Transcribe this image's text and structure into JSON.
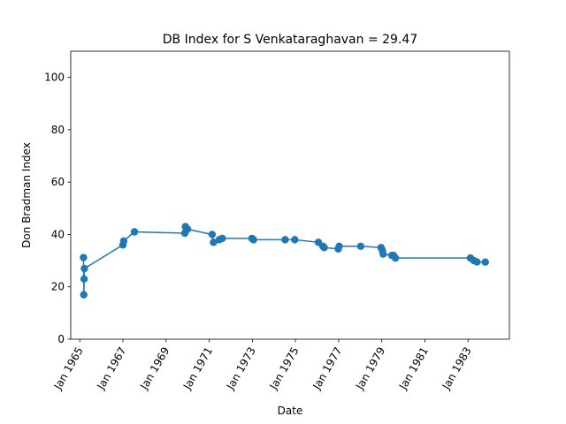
{
  "chart_data": {
    "type": "line",
    "title": "DB Index for S Venkataraghavan = 29.47",
    "xlabel": "Date",
    "ylabel": "Don Bradman Index",
    "ylim": [
      0,
      110
    ],
    "xlim": [
      "1964-08-01",
      "1984-12-01"
    ],
    "y_ticks": [
      0,
      20,
      40,
      60,
      80,
      100
    ],
    "x_ticks": [
      {
        "date": "1965-01-01",
        "label": "Jan 1965"
      },
      {
        "date": "1967-01-01",
        "label": "Jan 1967"
      },
      {
        "date": "1969-01-01",
        "label": "Jan 1969"
      },
      {
        "date": "1971-01-01",
        "label": "Jan 1971"
      },
      {
        "date": "1973-01-01",
        "label": "Jan 1973"
      },
      {
        "date": "1975-01-01",
        "label": "Jan 1975"
      },
      {
        "date": "1977-01-01",
        "label": "Jan 1977"
      },
      {
        "date": "1979-01-01",
        "label": "Jan 1979"
      },
      {
        "date": "1981-01-01",
        "label": "Jan 1981"
      },
      {
        "date": "1983-01-01",
        "label": "Jan 1983"
      }
    ],
    "grid": false,
    "color": "#1f77b4",
    "marker": "circle",
    "series": [
      {
        "points": [
          {
            "date": "1965-03-05",
            "y": 31.2
          },
          {
            "date": "1965-03-10",
            "y": 17.0
          },
          {
            "date": "1965-03-15",
            "y": 23.0
          },
          {
            "date": "1965-03-20",
            "y": 27.0
          },
          {
            "date": "1967-01-01",
            "y": 36.0
          },
          {
            "date": "1967-01-15",
            "y": 37.5
          },
          {
            "date": "1967-07-15",
            "y": 41.0
          },
          {
            "date": "1969-11-15",
            "y": 40.5
          },
          {
            "date": "1969-11-25",
            "y": 43.0
          },
          {
            "date": "1969-12-10",
            "y": 42.0
          },
          {
            "date": "1970-01-01",
            "y": 42.0
          },
          {
            "date": "1971-02-20",
            "y": 40.0
          },
          {
            "date": "1971-03-15",
            "y": 37.0
          },
          {
            "date": "1971-06-20",
            "y": 38.0
          },
          {
            "date": "1971-08-10",
            "y": 38.5
          },
          {
            "date": "1972-12-25",
            "y": 38.5
          },
          {
            "date": "1973-01-20",
            "y": 38.0
          },
          {
            "date": "1974-07-10",
            "y": 38.0
          },
          {
            "date": "1974-12-20",
            "y": 38.0
          },
          {
            "date": "1976-01-25",
            "y": 37.0
          },
          {
            "date": "1976-04-10",
            "y": 35.5
          },
          {
            "date": "1976-05-01",
            "y": 35.0
          },
          {
            "date": "1976-12-25",
            "y": 34.5
          },
          {
            "date": "1977-01-10",
            "y": 35.5
          },
          {
            "date": "1978-01-10",
            "y": 35.5
          },
          {
            "date": "1978-12-20",
            "y": 35.0
          },
          {
            "date": "1979-01-10",
            "y": 34.0
          },
          {
            "date": "1979-01-25",
            "y": 32.5
          },
          {
            "date": "1979-06-20",
            "y": 32.0
          },
          {
            "date": "1979-07-20",
            "y": 32.0
          },
          {
            "date": "1979-08-20",
            "y": 31.0
          },
          {
            "date": "1983-02-10",
            "y": 31.0
          },
          {
            "date": "1983-04-10",
            "y": 30.0
          },
          {
            "date": "1983-06-01",
            "y": 29.5
          },
          {
            "date": "1983-10-20",
            "y": 29.47
          }
        ]
      }
    ]
  }
}
